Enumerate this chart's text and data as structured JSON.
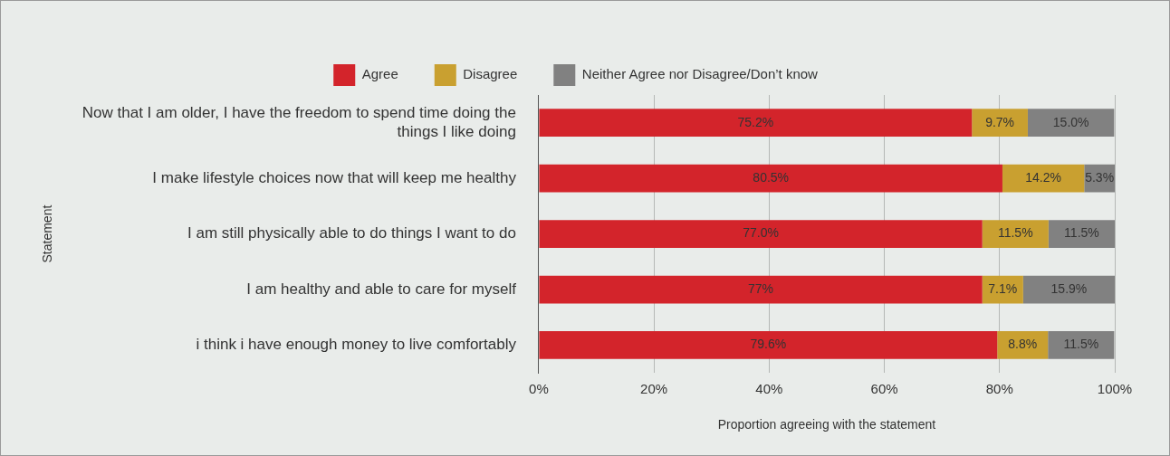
{
  "chart_data": {
    "type": "bar",
    "orientation": "horizontal",
    "stacked": true,
    "xlabel": "Proportion agreeing with the statement",
    "ylabel": "Statement",
    "categories": [
      "Now that I am older, I have the freedom to spend time doing the things I like doing",
      "I make lifestyle choices now that will keep me healthy",
      "I am still physically able to do things I want to do",
      "I am healthy and able to care for myself",
      "i think i have enough money to live comfortably"
    ],
    "series": [
      {
        "name": "Agree",
        "color": "#d3242b",
        "values": [
          75.2,
          80.5,
          77.0,
          77,
          79.6
        ],
        "value_labels": [
          "75.2%",
          "80.5%",
          "77.0%",
          "77%",
          "79.6%"
        ]
      },
      {
        "name": "Disagree",
        "color": "#c9a030",
        "values": [
          9.7,
          14.2,
          11.5,
          7.1,
          8.8
        ],
        "value_labels": [
          "9.7%",
          "14.2%",
          "11.5%",
          "7.1%",
          "8.8%"
        ]
      },
      {
        "name": "Neither Agree nor Disagree/Don’t know",
        "color": "#818181",
        "values": [
          15.0,
          5.3,
          11.5,
          15.9,
          11.5
        ],
        "value_labels": [
          "15.0%",
          "5.3%",
          "11.5%",
          "15.9%",
          "11.5%"
        ]
      }
    ],
    "xlim": [
      0,
      100
    ],
    "xticks": [
      {
        "value": 0,
        "label": "0%"
      },
      {
        "value": 20,
        "label": "20%"
      },
      {
        "value": 40,
        "label": "40%"
      },
      {
        "value": 60,
        "label": "60%"
      },
      {
        "value": 80,
        "label": "80%"
      },
      {
        "value": 100,
        "label": "100%"
      }
    ],
    "grid": "x",
    "legend": "top"
  }
}
